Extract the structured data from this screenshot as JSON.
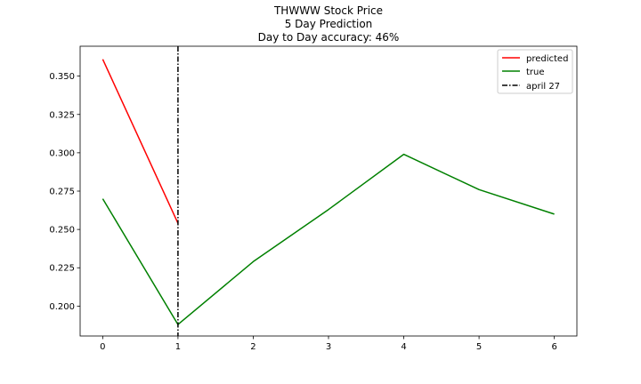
{
  "chart_data": {
    "type": "line",
    "title_lines": [
      "THWWW Stock Price",
      "5 Day Prediction",
      "Day to Day accuracy: 46%"
    ],
    "xlabel": "",
    "ylabel": "",
    "x_ticks": [
      0,
      1,
      2,
      3,
      4,
      5,
      6
    ],
    "y_ticks": [
      0.2,
      0.225,
      0.25,
      0.275,
      0.3,
      0.325,
      0.35
    ],
    "y_tick_labels": [
      "0.200",
      "0.225",
      "0.250",
      "0.275",
      "0.300",
      "0.325",
      "0.350"
    ],
    "xlim": [
      -0.3,
      6.3
    ],
    "ylim": [
      0.1805,
      0.3695
    ],
    "grid": false,
    "legend_position": "top-right",
    "series": [
      {
        "name": "predicted",
        "color": "#ff0000",
        "style": "solid",
        "x": [
          0,
          1
        ],
        "y": [
          0.361,
          0.254
        ]
      },
      {
        "name": "true",
        "color": "#008000",
        "style": "solid",
        "x": [
          0,
          1,
          2,
          3,
          4,
          5,
          6
        ],
        "y": [
          0.27,
          0.188,
          0.229,
          0.263,
          0.299,
          0.276,
          0.26
        ]
      }
    ],
    "vline": {
      "name": "april 27",
      "color": "#000000",
      "style": "dashdot",
      "x": 1
    }
  }
}
